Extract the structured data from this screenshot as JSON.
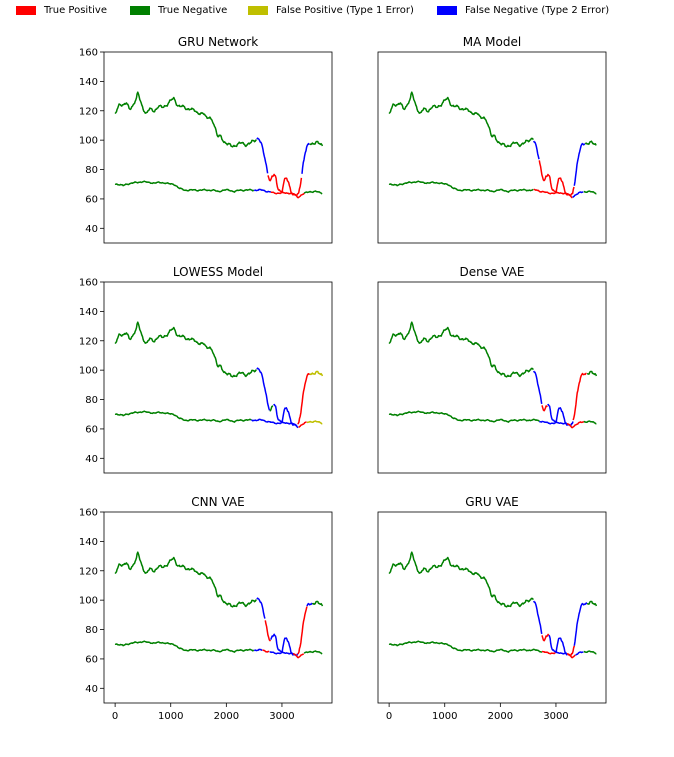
{
  "legend": {
    "items": [
      {
        "label": "True Positive",
        "color": "#ff0000"
      },
      {
        "label": "True Negative",
        "color": "#008000"
      },
      {
        "label": "False Positive (Type 1 Error)",
        "color": "#bfbf00"
      },
      {
        "label": "False Negative (Type 2 Error)",
        "color": "#0000ff"
      }
    ]
  },
  "chart_data": [
    {
      "type": "line",
      "title": "GRU Network",
      "xlim": [
        -200,
        3900
      ],
      "ylim": [
        30,
        160
      ],
      "xticks": [
        0,
        1000,
        2000,
        3000
      ],
      "yticks": [
        40,
        60,
        80,
        100,
        120,
        140,
        160
      ],
      "xlabel": "",
      "ylabel": "",
      "upper_segments": [
        {
          "class": "True Negative",
          "color": "#008000",
          "start": 0,
          "end": 2550
        },
        {
          "class": "False Negative (Type 2 Error)",
          "color": "#0000ff",
          "start": 2550,
          "end": 2750
        },
        {
          "class": "True Positive",
          "color": "#ff0000",
          "start": 2750,
          "end": 3360
        },
        {
          "class": "False Negative (Type 2 Error)",
          "color": "#0000ff",
          "start": 3360,
          "end": 3500
        },
        {
          "class": "True Negative",
          "color": "#008000",
          "start": 3500,
          "end": 3730
        }
      ],
      "lower_segments": [
        {
          "class": "True Negative",
          "color": "#008000",
          "start": 0,
          "end": 2500
        },
        {
          "class": "False Negative (Type 2 Error)",
          "color": "#0000ff",
          "start": 2500,
          "end": 2800
        },
        {
          "class": "True Positive",
          "color": "#ff0000",
          "start": 2800,
          "end": 3400
        },
        {
          "class": "True Negative",
          "color": "#008000",
          "start": 3400,
          "end": 3730
        }
      ]
    },
    {
      "type": "line",
      "title": "MA Model",
      "xlim": [
        -200,
        3900
      ],
      "ylim": [
        30,
        160
      ],
      "xticks": [
        0,
        1000,
        2000,
        3000
      ],
      "yticks": [
        40,
        60,
        80,
        100,
        120,
        140,
        160
      ],
      "xlabel": "",
      "ylabel": "",
      "upper_segments": [
        {
          "class": "True Negative",
          "color": "#008000",
          "start": 0,
          "end": 2600
        },
        {
          "class": "False Negative (Type 2 Error)",
          "color": "#0000ff",
          "start": 2600,
          "end": 2700
        },
        {
          "class": "True Positive",
          "color": "#ff0000",
          "start": 2700,
          "end": 3330
        },
        {
          "class": "False Negative (Type 2 Error)",
          "color": "#0000ff",
          "start": 3330,
          "end": 3530
        },
        {
          "class": "True Negative",
          "color": "#008000",
          "start": 3530,
          "end": 3730
        }
      ],
      "lower_segments": [
        {
          "class": "True Negative",
          "color": "#008000",
          "start": 0,
          "end": 2600
        },
        {
          "class": "True Positive",
          "color": "#ff0000",
          "start": 2600,
          "end": 3300
        },
        {
          "class": "False Negative (Type 2 Error)",
          "color": "#0000ff",
          "start": 3300,
          "end": 3500
        },
        {
          "class": "True Negative",
          "color": "#008000",
          "start": 3500,
          "end": 3730
        }
      ]
    },
    {
      "type": "line",
      "title": "LOWESS Model",
      "xlim": [
        -200,
        3900
      ],
      "ylim": [
        30,
        160
      ],
      "xticks": [
        0,
        1000,
        2000,
        3000
      ],
      "yticks": [
        40,
        60,
        80,
        100,
        120,
        140,
        160
      ],
      "xlabel": "",
      "ylabel": "",
      "upper_segments": [
        {
          "class": "True Negative",
          "color": "#008000",
          "start": 0,
          "end": 2550
        },
        {
          "class": "False Negative (Type 2 Error)",
          "color": "#0000ff",
          "start": 2550,
          "end": 2780
        },
        {
          "class": "True Negative",
          "color": "#008000",
          "start": 2780,
          "end": 2850
        },
        {
          "class": "False Negative (Type 2 Error)",
          "color": "#0000ff",
          "start": 2850,
          "end": 3280
        },
        {
          "class": "True Positive",
          "color": "#ff0000",
          "start": 3280,
          "end": 3500
        },
        {
          "class": "False Positive (Type 1 Error)",
          "color": "#bfbf00",
          "start": 3500,
          "end": 3730
        }
      ],
      "lower_segments": [
        {
          "class": "True Negative",
          "color": "#008000",
          "start": 0,
          "end": 2450
        },
        {
          "class": "False Negative (Type 2 Error)",
          "color": "#0000ff",
          "start": 2450,
          "end": 3300
        },
        {
          "class": "True Positive",
          "color": "#ff0000",
          "start": 3300,
          "end": 3450
        },
        {
          "class": "False Positive (Type 1 Error)",
          "color": "#bfbf00",
          "start": 3450,
          "end": 3730
        }
      ]
    },
    {
      "type": "line",
      "title": "Dense VAE",
      "xlim": [
        -200,
        3900
      ],
      "ylim": [
        30,
        160
      ],
      "xticks": [
        0,
        1000,
        2000,
        3000
      ],
      "yticks": [
        40,
        60,
        80,
        100,
        120,
        140,
        160
      ],
      "xlabel": "",
      "ylabel": "",
      "upper_segments": [
        {
          "class": "True Negative",
          "color": "#008000",
          "start": 0,
          "end": 2600
        },
        {
          "class": "False Negative (Type 2 Error)",
          "color": "#0000ff",
          "start": 2600,
          "end": 2750
        },
        {
          "class": "True Positive",
          "color": "#ff0000",
          "start": 2750,
          "end": 2850
        },
        {
          "class": "False Negative (Type 2 Error)",
          "color": "#0000ff",
          "start": 2850,
          "end": 3310
        },
        {
          "class": "True Positive",
          "color": "#ff0000",
          "start": 3310,
          "end": 3560
        },
        {
          "class": "True Negative",
          "color": "#008000",
          "start": 3560,
          "end": 3730
        }
      ],
      "lower_segments": [
        {
          "class": "True Negative",
          "color": "#008000",
          "start": 0,
          "end": 2700
        },
        {
          "class": "False Negative (Type 2 Error)",
          "color": "#0000ff",
          "start": 2700,
          "end": 3200
        },
        {
          "class": "True Positive",
          "color": "#ff0000",
          "start": 3200,
          "end": 3500
        },
        {
          "class": "True Negative",
          "color": "#008000",
          "start": 3500,
          "end": 3730
        }
      ]
    },
    {
      "type": "line",
      "title": "CNN VAE",
      "xlim": [
        -200,
        3900
      ],
      "ylim": [
        30,
        160
      ],
      "xticks": [
        0,
        1000,
        2000,
        3000
      ],
      "yticks": [
        40,
        60,
        80,
        100,
        120,
        140,
        160
      ],
      "xlabel": "",
      "ylabel": "",
      "upper_segments": [
        {
          "class": "True Negative",
          "color": "#008000",
          "start": 0,
          "end": 2550
        },
        {
          "class": "False Negative (Type 2 Error)",
          "color": "#0000ff",
          "start": 2550,
          "end": 2700
        },
        {
          "class": "True Positive",
          "color": "#ff0000",
          "start": 2700,
          "end": 2800
        },
        {
          "class": "False Negative (Type 2 Error)",
          "color": "#0000ff",
          "start": 2800,
          "end": 3280
        },
        {
          "class": "True Positive",
          "color": "#ff0000",
          "start": 3280,
          "end": 3450
        },
        {
          "class": "False Negative (Type 2 Error)",
          "color": "#0000ff",
          "start": 3450,
          "end": 3550
        },
        {
          "class": "True Negative",
          "color": "#008000",
          "start": 3550,
          "end": 3730
        }
      ],
      "lower_segments": [
        {
          "class": "True Negative",
          "color": "#008000",
          "start": 0,
          "end": 2500
        },
        {
          "class": "False Negative (Type 2 Error)",
          "color": "#0000ff",
          "start": 2500,
          "end": 2650
        },
        {
          "class": "True Positive",
          "color": "#ff0000",
          "start": 2650,
          "end": 2780
        },
        {
          "class": "False Negative (Type 2 Error)",
          "color": "#0000ff",
          "start": 2780,
          "end": 3200
        },
        {
          "class": "True Positive",
          "color": "#ff0000",
          "start": 3200,
          "end": 3400
        },
        {
          "class": "True Negative",
          "color": "#008000",
          "start": 3400,
          "end": 3730
        }
      ]
    },
    {
      "type": "line",
      "title": "GRU VAE",
      "xlim": [
        -200,
        3900
      ],
      "ylim": [
        30,
        160
      ],
      "xticks": [
        0,
        1000,
        2000,
        3000
      ],
      "yticks": [
        40,
        60,
        80,
        100,
        120,
        140,
        160
      ],
      "xlabel": "",
      "ylabel": "",
      "upper_segments": [
        {
          "class": "True Negative",
          "color": "#008000",
          "start": 0,
          "end": 2600
        },
        {
          "class": "False Negative (Type 2 Error)",
          "color": "#0000ff",
          "start": 2600,
          "end": 2750
        },
        {
          "class": "True Positive",
          "color": "#ff0000",
          "start": 2750,
          "end": 2870
        },
        {
          "class": "False Negative (Type 2 Error)",
          "color": "#0000ff",
          "start": 2870,
          "end": 3210
        },
        {
          "class": "True Positive",
          "color": "#ff0000",
          "start": 3210,
          "end": 3330
        },
        {
          "class": "False Negative (Type 2 Error)",
          "color": "#0000ff",
          "start": 3330,
          "end": 3560
        },
        {
          "class": "True Negative",
          "color": "#008000",
          "start": 3560,
          "end": 3730
        }
      ],
      "lower_segments": [
        {
          "class": "True Negative",
          "color": "#008000",
          "start": 0,
          "end": 2750
        },
        {
          "class": "True Positive",
          "color": "#ff0000",
          "start": 2750,
          "end": 3000
        },
        {
          "class": "False Negative (Type 2 Error)",
          "color": "#0000ff",
          "start": 3000,
          "end": 3200
        },
        {
          "class": "True Positive",
          "color": "#ff0000",
          "start": 3200,
          "end": 3350
        },
        {
          "class": "False Negative (Type 2 Error)",
          "color": "#0000ff",
          "start": 3350,
          "end": 3500
        },
        {
          "class": "True Negative",
          "color": "#008000",
          "start": 3500,
          "end": 3730
        }
      ]
    }
  ]
}
